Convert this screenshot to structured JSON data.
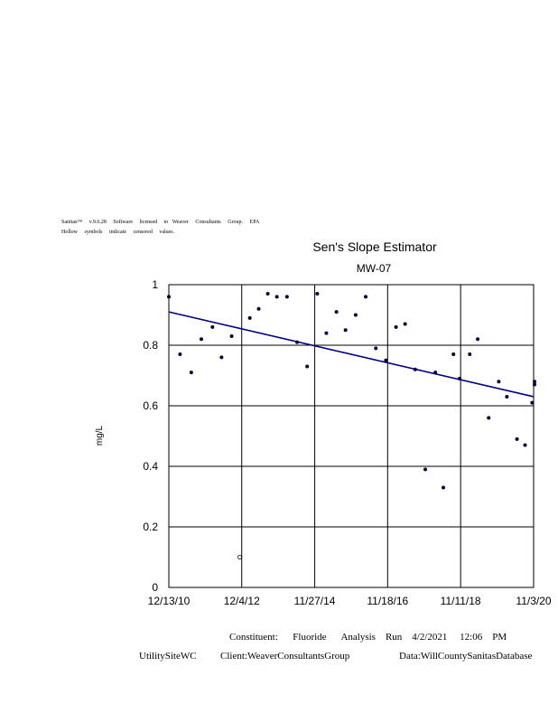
{
  "header": {
    "line1": "Sanitas™     v.9.6.28     Software     licensed     to   Weaver     Consultants     Group.     EPA",
    "line2": "Hollow     symbols     indicate     censored     values."
  },
  "footer": {
    "constituent_line": "Constituent:      Fluoride      Analysis    Run    4/2/2021     12:06    PM",
    "site": "UtilitySiteWC",
    "client": "Client:WeaverConsultantsGroup",
    "data": "Data:WillCountySanitasDatabase"
  },
  "chart_data": {
    "type": "scatter",
    "title": "Sen's Slope Estimator",
    "subtitle": "MW-07",
    "xlabel": "",
    "ylabel": "mg/L",
    "ylim": [
      0,
      1
    ],
    "yticks": [
      "0",
      "0.2",
      "0.4",
      "0.6",
      "0.8",
      "1"
    ],
    "xlim": [
      "12/13/10",
      "11/3/20"
    ],
    "xticks": [
      "12/13/10",
      "12/4/12",
      "11/27/14",
      "11/18/16",
      "11/11/18",
      "11/3/20"
    ],
    "grid": true,
    "colors": {
      "points": "#000033",
      "trend": "#000080",
      "grid": "#000000"
    },
    "points": [
      {
        "date": "12/13/10",
        "value": 0.96
      },
      {
        "date": "4/3/11",
        "value": 0.77
      },
      {
        "date": "7/23/11",
        "value": 0.71
      },
      {
        "date": "10/31/11",
        "value": 0.82
      },
      {
        "date": "2/18/12",
        "value": 0.86
      },
      {
        "date": "5/18/12",
        "value": 0.76
      },
      {
        "date": "8/26/12",
        "value": 0.83
      },
      {
        "date": "11/14/12",
        "value": 0.1,
        "censored": true
      },
      {
        "date": "2/22/13",
        "value": 0.89
      },
      {
        "date": "5/21/13",
        "value": 0.92
      },
      {
        "date": "8/19/13",
        "value": 0.97
      },
      {
        "date": "11/17/13",
        "value": 0.96
      },
      {
        "date": "2/25/14",
        "value": 0.96
      },
      {
        "date": "6/5/14",
        "value": 0.81
      },
      {
        "date": "9/13/14",
        "value": 0.73
      },
      {
        "date": "12/22/14",
        "value": 0.97
      },
      {
        "date": "3/22/15",
        "value": 0.84
      },
      {
        "date": "6/30/15",
        "value": 0.91
      },
      {
        "date": "9/28/15",
        "value": 0.85
      },
      {
        "date": "1/6/16",
        "value": 0.9
      },
      {
        "date": "4/15/16",
        "value": 0.96
      },
      {
        "date": "7/24/16",
        "value": 0.79
      },
      {
        "date": "11/1/16",
        "value": 0.75
      },
      {
        "date": "2/9/17",
        "value": 0.86
      },
      {
        "date": "5/10/17",
        "value": 0.87
      },
      {
        "date": "8/18/17",
        "value": 0.72
      },
      {
        "date": "11/26/17",
        "value": 0.39
      },
      {
        "date": "3/6/18",
        "value": 0.71
      },
      {
        "date": "5/24/18",
        "value": 0.33
      },
      {
        "date": "9/1/18",
        "value": 0.77
      },
      {
        "date": "11/1/18",
        "value": 0.69
      },
      {
        "date": "2/9/19",
        "value": 0.77
      },
      {
        "date": "4/29/19",
        "value": 0.82
      },
      {
        "date": "8/16/19",
        "value": 0.56
      },
      {
        "date": "11/24/19",
        "value": 0.68
      },
      {
        "date": "2/12/20",
        "value": 0.63
      },
      {
        "date": "5/22/20",
        "value": 0.49
      },
      {
        "date": "8/10/20",
        "value": 0.47
      },
      {
        "date": "10/19/20",
        "value": 0.61
      },
      {
        "date": "1/7/21",
        "value": 0.67
      },
      {
        "date": "4/7/21",
        "value": 0.68
      }
    ],
    "trend_line": {
      "start": {
        "date": "12/13/10",
        "value": 0.91
      },
      "end": {
        "date": "11/3/20",
        "value": 0.63
      }
    }
  }
}
